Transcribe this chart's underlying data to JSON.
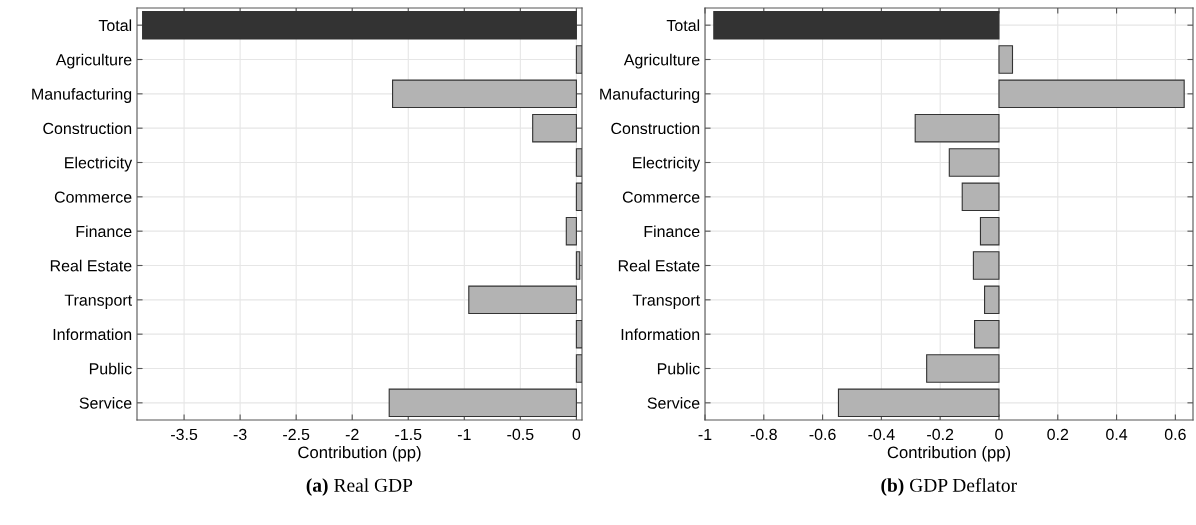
{
  "chart_data": [
    {
      "type": "bar",
      "orientation": "horizontal",
      "xlabel": "Contribution (pp)",
      "annotations": [
        "(a)",
        "Real GDP"
      ],
      "categories": [
        "Total",
        "Agriculture",
        "Manufacturing",
        "Construction",
        "Electricity",
        "Commerce",
        "Finance",
        "Real Estate",
        "Transport",
        "Information",
        "Public",
        "Service"
      ],
      "values": [
        -3.87,
        0.05,
        -1.64,
        -0.39,
        0.05,
        0.05,
        -0.09,
        0.03,
        -0.96,
        0.05,
        0.05,
        -1.67
      ],
      "colors": [
        "#333333",
        "#b3b3b3",
        "#b3b3b3",
        "#b3b3b3",
        "#b3b3b3",
        "#b3b3b3",
        "#b3b3b3",
        "#b3b3b3",
        "#b3b3b3",
        "#b3b3b3",
        "#b3b3b3",
        "#b3b3b3"
      ],
      "xlim": [
        -3.92,
        0.05
      ],
      "xticks": [
        -3.5,
        -3,
        -2.5,
        -2,
        -1.5,
        -1,
        -0.5,
        0
      ],
      "grid": true
    },
    {
      "type": "bar",
      "orientation": "horizontal",
      "xlabel": "Contribution (pp)",
      "annotations": [
        "(b)",
        "GDP Deflator"
      ],
      "categories": [
        "Total",
        "Agriculture",
        "Manufacturing",
        "Construction",
        "Electricity",
        "Commerce",
        "Finance",
        "Real Estate",
        "Transport",
        "Information",
        "Public",
        "Service"
      ],
      "values": [
        -0.97,
        0.046,
        0.63,
        -0.285,
        -0.169,
        -0.125,
        -0.063,
        -0.087,
        -0.049,
        -0.083,
        -0.246,
        -0.546
      ],
      "colors": [
        "#333333",
        "#b3b3b3",
        "#b3b3b3",
        "#b3b3b3",
        "#b3b3b3",
        "#b3b3b3",
        "#b3b3b3",
        "#b3b3b3",
        "#b3b3b3",
        "#b3b3b3",
        "#b3b3b3",
        "#b3b3b3"
      ],
      "xlim": [
        -1,
        0.66
      ],
      "xticks": [
        -1,
        -0.8,
        -0.6,
        -0.4,
        -0.2,
        0,
        0.2,
        0.4,
        0.6
      ],
      "grid": true
    }
  ]
}
